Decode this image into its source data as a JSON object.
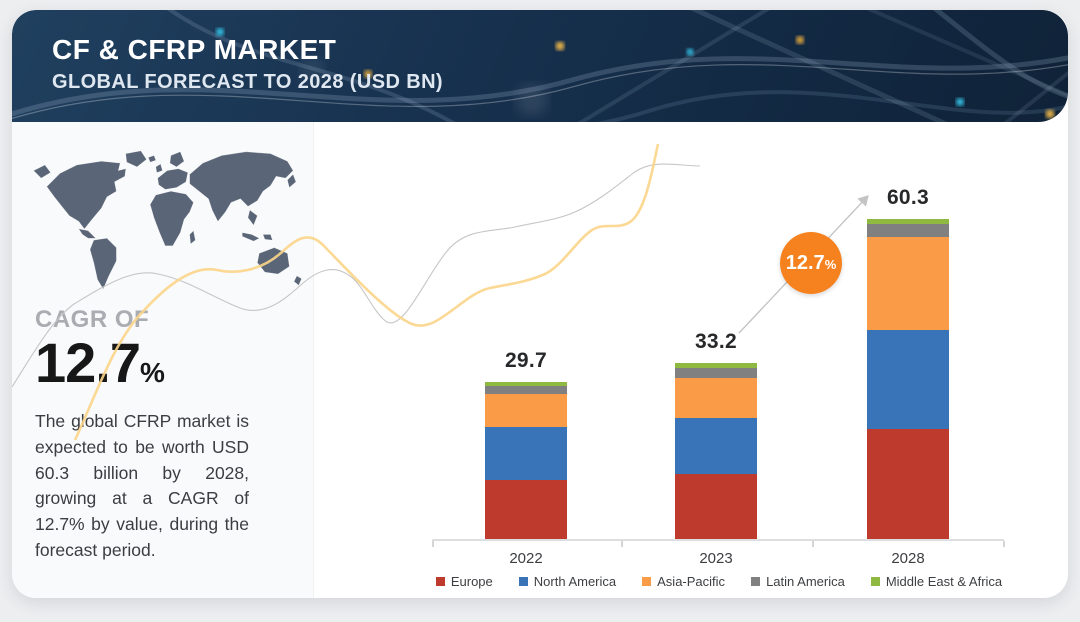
{
  "header": {
    "title": "CF & CFRP MARKET",
    "subtitle": "GLOBAL FORECAST TO 2028 (USD BN)"
  },
  "left_panel": {
    "cagr_label": "CAGR OF",
    "cagr_value": "12.7",
    "cagr_unit": "%",
    "description": "The global CFRP market is expected to be worth USD 60.3 billion by 2028, growing at a CAGR of 12.7% by value, during the forecast period."
  },
  "badge": {
    "value": "12.7",
    "unit": "%",
    "color": "#f5821f"
  },
  "colors": {
    "header_bg": "#16304d",
    "page_bg": "#edeef0",
    "map": "#5a6577",
    "deco_yellow": "#fbd58a",
    "deco_gray": "#c2c2c2",
    "axis": "#dcdee0"
  },
  "chart_data": {
    "type": "bar",
    "stacked": true,
    "title": "CF & CFRP Market, Global Forecast (USD BN)",
    "xlabel": "",
    "ylabel": "USD BN",
    "grid": false,
    "legend_position": "bottom",
    "categories": [
      "2022",
      "2023",
      "2028"
    ],
    "series": [
      {
        "name": "Europe",
        "color": "#bd3a2d",
        "values": [
          11.2,
          12.2,
          20.7
        ]
      },
      {
        "name": "North America",
        "color": "#3a74b8",
        "values": [
          10.0,
          10.7,
          18.7
        ]
      },
      {
        "name": "Asia-Pacific",
        "color": "#f99b47",
        "values": [
          6.1,
          7.5,
          17.6
        ]
      },
      {
        "name": "Latin America",
        "color": "#808080",
        "values": [
          1.5,
          1.9,
          2.4
        ]
      },
      {
        "name": "Middle East & Africa",
        "color": "#90b942",
        "values": [
          0.9,
          0.9,
          0.9
        ]
      }
    ],
    "totals": [
      29.7,
      33.2,
      60.3
    ],
    "total_labels": [
      "29.7",
      "33.2",
      "60.3"
    ],
    "annotation": {
      "text": "12.7%",
      "meaning": "CAGR arrow from 2023 to 2028"
    }
  }
}
